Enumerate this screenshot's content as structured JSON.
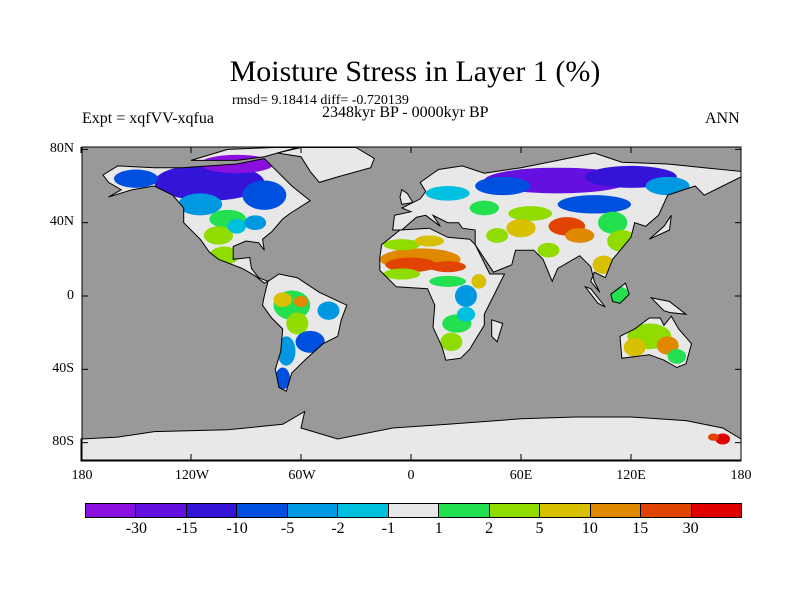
{
  "title": "Moisture Stress in Layer 1 (%)",
  "stats": "rmsd= 9.18414 diff= -0.720139",
  "period": "2348kyr BP - 0000kyr BP",
  "experiment": "Expt = xqfVV-xqfua",
  "season": "ANN",
  "lat_labels": [
    "80N",
    "40N",
    "0",
    "40S",
    "80S"
  ],
  "lat_values": [
    80,
    40,
    0,
    -40,
    -80
  ],
  "lon_labels": [
    "180",
    "120W",
    "60W",
    "0",
    "60E",
    "120E",
    "180"
  ],
  "colorbar": {
    "colors": [
      "#8a10e0",
      "#6410e0",
      "#3414d8",
      "#0050e0",
      "#0098e0",
      "#00c0e0",
      "#e8e8e8",
      "#22e050",
      "#90dc00",
      "#d8c000",
      "#e08800",
      "#e04400",
      "#e00000"
    ],
    "labels": [
      "-30",
      "-15",
      "-10",
      "-5",
      "-2",
      "-1",
      "1",
      "2",
      "5",
      "10",
      "15",
      "30"
    ]
  },
  "colors": {
    "ocean": "#999999",
    "land_default": "#e8e8e8"
  }
}
